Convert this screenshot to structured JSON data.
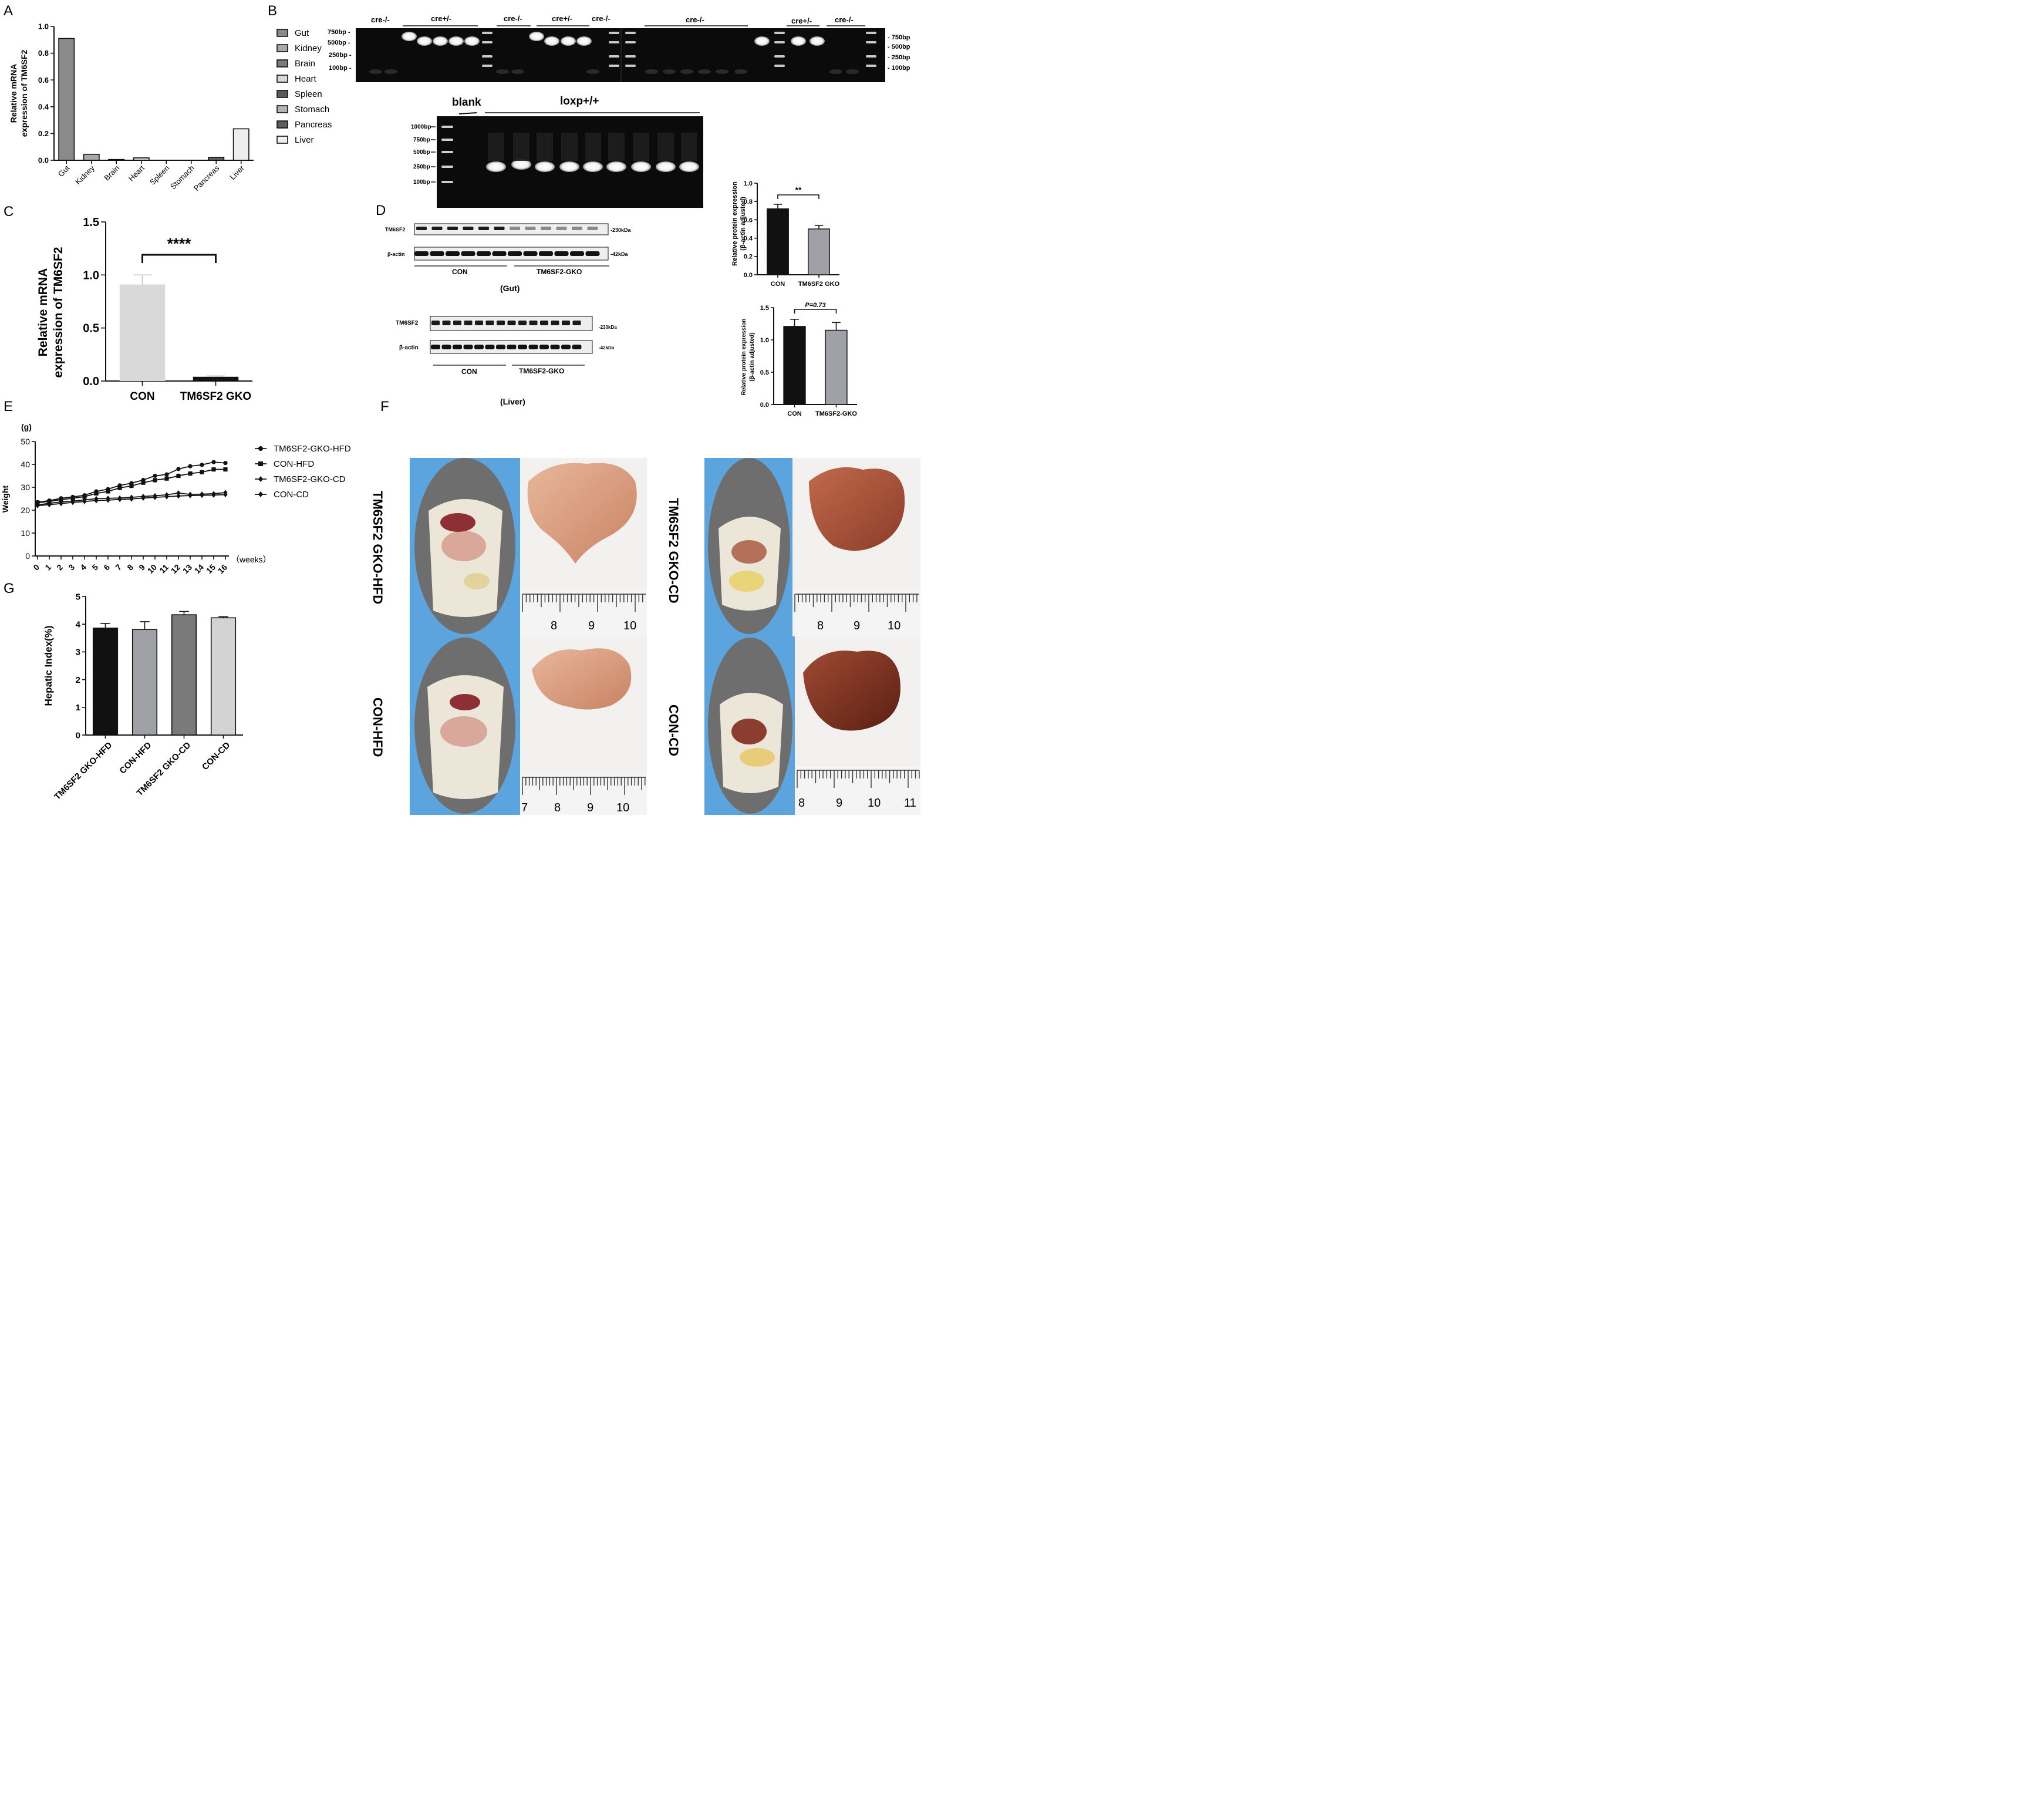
{
  "panel_letters": [
    "A",
    "B",
    "C",
    "D",
    "E",
    "F",
    "G"
  ],
  "colors": {
    "dark": "#111111",
    "grey": "#a0a1a7",
    "light": "#d9d9d9",
    "gel": "#0c0c0c",
    "band": "#f4f4f4",
    "blot": "#f2f2f2"
  },
  "chart_data": [
    {
      "panel": "A",
      "type": "bar",
      "ylabel": "Relative mRNA expression of TM6SF2",
      "categories": [
        "Gut",
        "Kidney",
        "Brain",
        "Heart",
        "Spleen",
        "Stomach",
        "Pancreas",
        "Liver"
      ],
      "values": [
        0.91,
        0.045,
        0.006,
        0.018,
        0.0,
        0.0,
        0.022,
        0.235
      ],
      "colors": [
        "#8a8a8a",
        "#a8a8a8",
        "#7b7b7b",
        "#d9d9d9",
        "#5a5a5a",
        "#b3b3b3",
        "#5e5e5e",
        "#eeeeee"
      ],
      "ylim": [
        0,
        1.0
      ],
      "yticks": [
        "0.0",
        "0.2",
        "0.4",
        "0.6",
        "0.8",
        "1.0"
      ],
      "legend": [
        "Gut",
        "Kidney",
        "Brain",
        "Heart",
        "Spleen",
        "Stomach",
        "Pancreas",
        "Liver"
      ]
    },
    {
      "panel": "C",
      "type": "bar",
      "ylabel": "Relative mRNA expression of TM6SF2",
      "categories": [
        "CON",
        "TM6SF2 GKO"
      ],
      "values": [
        0.91,
        0.04
      ],
      "errors": [
        0.09,
        0.008
      ],
      "ylim": [
        0,
        1.5
      ],
      "yticks": [
        "0.0",
        "0.5",
        "1.0",
        "1.5"
      ],
      "significance": "****"
    },
    {
      "panel": "D-gut",
      "type": "bar",
      "ylabel": "Relative protein expression (β-actin adjusted)",
      "categories": [
        "CON",
        "TM6SF2 GKO"
      ],
      "values": [
        0.72,
        0.5
      ],
      "errors": [
        0.05,
        0.04
      ],
      "ylim": [
        0,
        1.0
      ],
      "yticks": [
        "0.0",
        "0.2",
        "0.4",
        "0.6",
        "0.8",
        "1.0"
      ],
      "significance": "**"
    },
    {
      "panel": "D-liver",
      "type": "bar",
      "ylabel": "Relative protein expression (β-actin adjusted)",
      "categories": [
        "CON",
        "TM6SF2-GKO"
      ],
      "values": [
        1.21,
        1.15
      ],
      "errors": [
        0.11,
        0.12
      ],
      "ylim": [
        0,
        1.5
      ],
      "yticks": [
        "0.0",
        "0.5",
        "1.0",
        "1.5"
      ],
      "significance": "P=0.73"
    },
    {
      "panel": "E",
      "type": "line",
      "ylabel": "Weight",
      "yunit": "(g)",
      "xunit": "（weeks）",
      "x": [
        0,
        1,
        2,
        3,
        4,
        5,
        6,
        7,
        8,
        9,
        10,
        11,
        12,
        13,
        14,
        15,
        16
      ],
      "ylim": [
        0,
        50
      ],
      "yticks": [
        "0",
        "10",
        "20",
        "30",
        "40",
        "50"
      ],
      "series": [
        {
          "name": "TM6SF2-GKO-HFD",
          "marker": "circle",
          "values": [
            23.5,
            24.2,
            25.2,
            25.8,
            26.5,
            28.2,
            29.2,
            30.8,
            31.8,
            33.2,
            35,
            35.6,
            38,
            39.2,
            39.8,
            41,
            40.6
          ]
        },
        {
          "name": "CON-HFD",
          "marker": "square",
          "values": [
            23.3,
            23.8,
            24.6,
            25.2,
            25.9,
            27.3,
            28.2,
            29.7,
            30.6,
            32,
            33.1,
            33.8,
            35,
            36,
            36.6,
            37.8,
            37.8
          ]
        },
        {
          "name": "TM6SF2-GKO-CD",
          "marker": "diamond",
          "values": [
            22.3,
            23,
            23.6,
            24,
            24.5,
            25,
            25.2,
            25.3,
            25.6,
            26,
            26.3,
            26.7,
            27.5,
            26.9,
            27,
            27.2,
            27.7
          ]
        },
        {
          "name": "CON-CD",
          "marker": "diamond",
          "values": [
            22,
            22.4,
            22.9,
            23.4,
            23.8,
            24.2,
            24.4,
            24.7,
            24.9,
            25.3,
            25.6,
            25.9,
            26.2,
            26.4,
            26.5,
            26.6,
            26.8
          ]
        }
      ]
    },
    {
      "panel": "G",
      "type": "bar",
      "ylabel": "Hepatic Index(%)",
      "categories": [
        "TM6SF2 GKO-HFD",
        "CON-HFD",
        "TM6SF2 GKO-CD",
        "CON-CD"
      ],
      "values": [
        3.86,
        3.81,
        4.34,
        4.23
      ],
      "errors": [
        0.17,
        0.28,
        0.12,
        0.04
      ],
      "colors": [
        "#111111",
        "#a0a1a7",
        "#7a7a7a",
        "#d3d3d3"
      ],
      "ylim": [
        0,
        5
      ],
      "yticks": [
        "0",
        "1",
        "2",
        "3",
        "4",
        "5"
      ]
    }
  ],
  "gel_b": {
    "lanes_left": [
      "750bp -",
      "500bp -",
      "250bp -",
      "100bp -"
    ],
    "lanes_right": [
      "- 750bp",
      "- 500bp",
      "- 250bp",
      "- 100bp"
    ],
    "groups": [
      "cre-/-",
      "cre+/-",
      "cre-/-",
      "cre+/-",
      "cre-/-",
      "cre-/-",
      "cre+/-",
      "cre-/-"
    ],
    "bottom_title_blank": "blank",
    "bottom_title_loxp": "loxp+/+",
    "bottom_ladder": [
      "1000bp",
      "750bp",
      "500bp",
      "250bp",
      "100bp"
    ]
  },
  "blots_d": {
    "gut_rows": [
      "TM6SF2",
      "β-actin"
    ],
    "gut_kda": [
      "-230kDa",
      "-42kDa"
    ],
    "liver_rows": [
      "TM6SF2",
      "β-actin"
    ],
    "liver_kda": [
      "-230kDa",
      "-42kDa"
    ],
    "groups": [
      "CON",
      "TM6SF2-GKO"
    ],
    "gut_caption": "(Gut)",
    "liver_caption": "(Liver)"
  },
  "photos_f": {
    "labels": [
      "TM6SF2 GKO-HFD",
      "CON-HFD",
      "TM6SF2 GKO-CD",
      "CON-CD"
    ],
    "ruler_top_left": [
      "8",
      "9",
      "10"
    ],
    "ruler_bottom_left": [
      "7",
      "8",
      "9",
      "10"
    ],
    "ruler_top_right": [
      "8",
      "9",
      "10"
    ],
    "ruler_bottom_right": [
      "8",
      "9",
      "10",
      "11"
    ]
  }
}
